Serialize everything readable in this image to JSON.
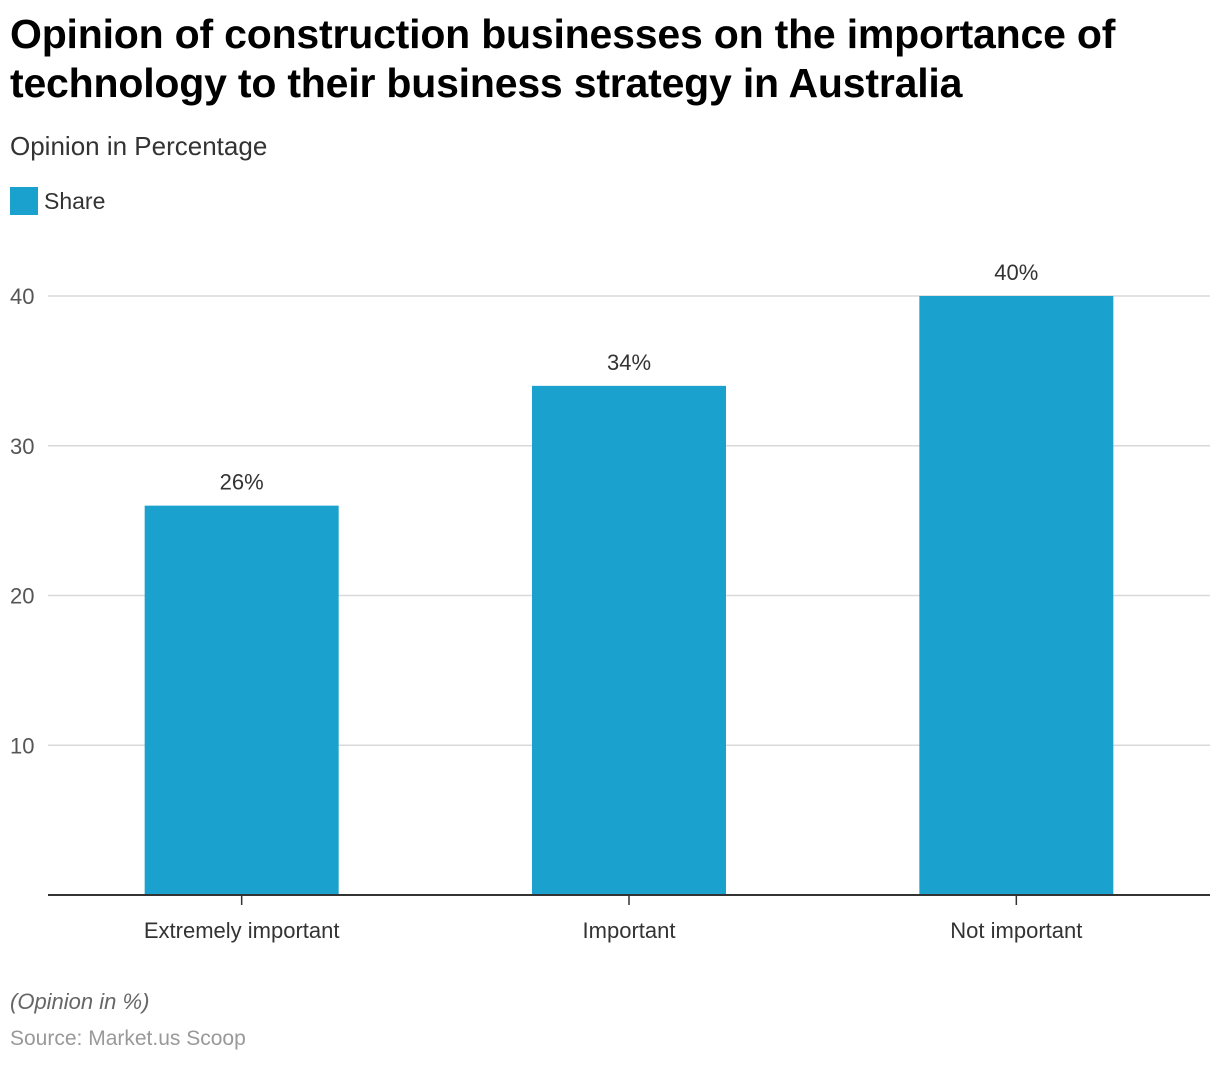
{
  "title": "Opinion of construction businesses on the importance of technology to their business strategy in Australia",
  "subtitle": "Opinion in Percentage",
  "footnote": "(Opinion in %)",
  "source": "Source: Market.us Scoop",
  "colors": {
    "bar": "#1aa1cd",
    "grid": "#d9d9d9",
    "axis": "#333333",
    "tick_text": "#555555",
    "label_text": "#333333"
  },
  "chart_data": {
    "type": "bar",
    "title": "Opinion of construction businesses on the importance of technology to their business strategy in Australia",
    "subtitle": "Opinion in Percentage",
    "xlabel": "",
    "ylabel": "",
    "categories": [
      "Extremely important",
      "Important",
      "Not important"
    ],
    "series": [
      {
        "name": "Share",
        "values": [
          26,
          34,
          40
        ],
        "labels": [
          "26%",
          "34%",
          "40%"
        ]
      }
    ],
    "ylim": [
      0,
      40
    ],
    "yticks": [
      10,
      20,
      30,
      40
    ],
    "grid": true,
    "legend": "top-left"
  }
}
